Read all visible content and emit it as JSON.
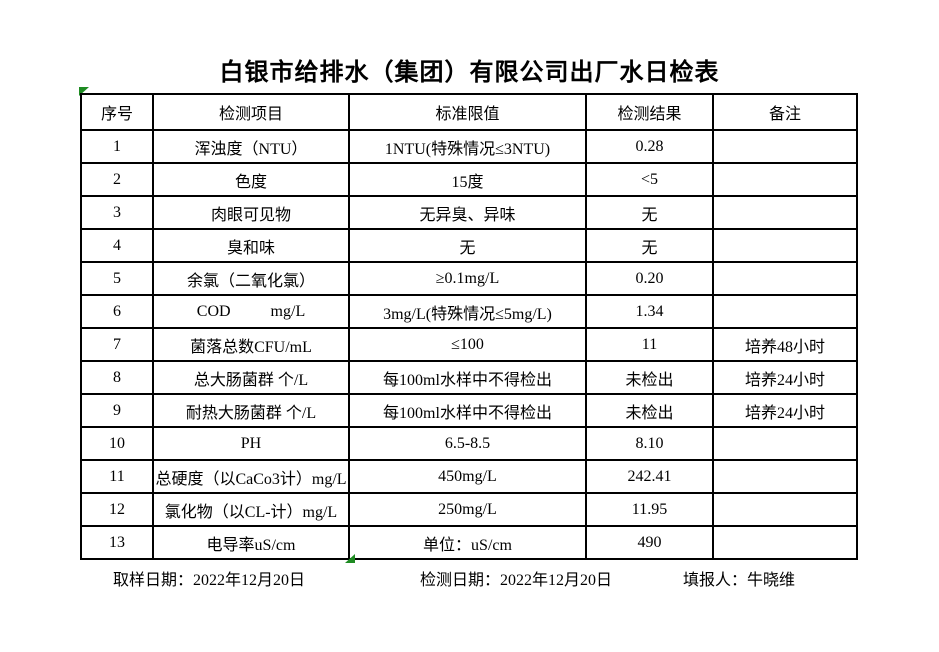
{
  "title": "白银市给排水（集团）有限公司出厂水日检表",
  "table": {
    "headers": [
      "序号",
      "检测项目",
      "标准限值",
      "检测结果",
      "备注"
    ],
    "rows": [
      [
        "1",
        "浑浊度（NTU）",
        "1NTU(特殊情况≤3NTU)",
        "0.28",
        ""
      ],
      [
        "2",
        "色度",
        "15度",
        "<5",
        ""
      ],
      [
        "3",
        "肉眼可见物",
        "无异臭、异味",
        "无",
        ""
      ],
      [
        "4",
        "臭和味",
        "无",
        "无",
        ""
      ],
      [
        "5",
        "余氯（二氧化氯）",
        "≥0.1mg/L",
        "0.20",
        ""
      ],
      [
        "6",
        "COD          mg/L",
        "3mg/L(特殊情况≤5mg/L)",
        "1.34",
        ""
      ],
      [
        "7",
        "菌落总数CFU/mL",
        "≤100",
        "11",
        "培养48小时"
      ],
      [
        "8",
        "总大肠菌群 个/L",
        "每100ml水样中不得检出",
        "未检出",
        "培养24小时"
      ],
      [
        "9",
        "耐热大肠菌群 个/L",
        "每100ml水样中不得检出",
        "未检出",
        "培养24小时"
      ],
      [
        "10",
        "PH",
        "6.5-8.5",
        "8.10",
        ""
      ],
      [
        "11",
        "总硬度（以CaCo3计）mg/L",
        "450mg/L",
        "242.41",
        ""
      ],
      [
        "12",
        "氯化物（以CL-计）mg/L",
        "250mg/L",
        "11.95",
        ""
      ],
      [
        "13",
        "电导率uS/cm",
        "单位：uS/cm",
        "490",
        ""
      ]
    ]
  },
  "footer": {
    "sampling_date": "取样日期：2022年12月20日",
    "test_date": "检测日期：2022年12月20日",
    "reporter": "填报人：牛晓维"
  },
  "markers": {
    "color": "#1e8b22"
  }
}
